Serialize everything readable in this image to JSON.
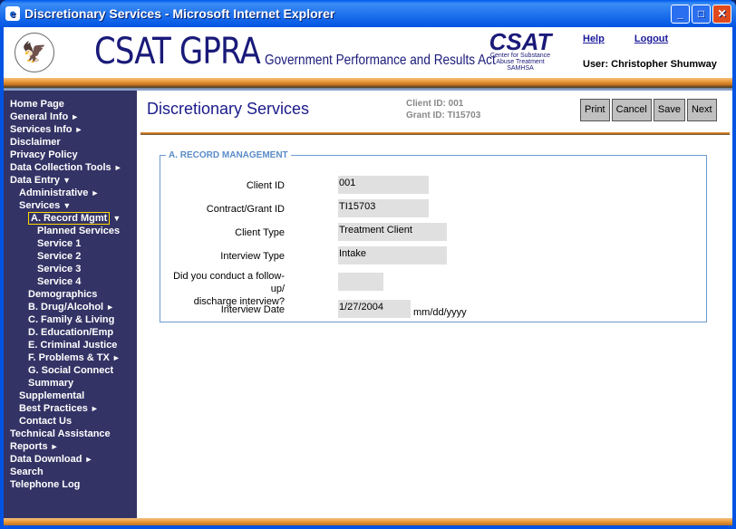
{
  "window": {
    "title": "Discretionary Services - Microsoft Internet Explorer"
  },
  "header": {
    "brand": "CSAT GPRA",
    "brand_sub": "Government Performance and Results Act",
    "logo_text": "CSAT",
    "logo_sub1": "Center for Substance",
    "logo_sub2": "Abuse Treatment",
    "logo_sub3": "SAMHSA",
    "help": "Help",
    "logout": "Logout",
    "user": "User: Christopher Shumway"
  },
  "sidebar": {
    "items": [
      {
        "label": "Home Page",
        "indent": 0,
        "arrow": ""
      },
      {
        "label": "General Info",
        "indent": 0,
        "arrow": "►"
      },
      {
        "label": "Services Info",
        "indent": 0,
        "arrow": "►"
      },
      {
        "label": "Disclaimer",
        "indent": 0,
        "arrow": ""
      },
      {
        "label": "Privacy Policy",
        "indent": 0,
        "arrow": ""
      },
      {
        "label": "Data Collection Tools",
        "indent": 0,
        "arrow": "►"
      },
      {
        "label": "Data Entry",
        "indent": 0,
        "arrow": "▼"
      },
      {
        "label": "Administrative",
        "indent": 1,
        "arrow": "►"
      },
      {
        "label": "Services",
        "indent": 1,
        "arrow": "▼"
      },
      {
        "label": "A. Record Mgmt",
        "indent": 2,
        "arrow": "▼",
        "selected": true
      },
      {
        "label": "Planned Services",
        "indent": 3,
        "arrow": ""
      },
      {
        "label": "Service 1",
        "indent": 3,
        "arrow": ""
      },
      {
        "label": "Service 2",
        "indent": 3,
        "arrow": ""
      },
      {
        "label": "Service 3",
        "indent": 3,
        "arrow": ""
      },
      {
        "label": "Service 4",
        "indent": 3,
        "arrow": ""
      },
      {
        "label": "Demographics",
        "indent": 2,
        "arrow": ""
      },
      {
        "label": "B. Drug/Alcohol",
        "indent": 2,
        "arrow": "►"
      },
      {
        "label": "C. Family & Living",
        "indent": 2,
        "arrow": ""
      },
      {
        "label": "D. Education/Emp",
        "indent": 2,
        "arrow": ""
      },
      {
        "label": "E. Criminal Justice",
        "indent": 2,
        "arrow": ""
      },
      {
        "label": "F. Problems & TX",
        "indent": 2,
        "arrow": "►"
      },
      {
        "label": "G. Social Connect",
        "indent": 2,
        "arrow": ""
      },
      {
        "label": "Summary",
        "indent": 2,
        "arrow": ""
      },
      {
        "label": "Supplemental",
        "indent": 1,
        "arrow": ""
      },
      {
        "label": "Best Practices",
        "indent": 1,
        "arrow": "►"
      },
      {
        "label": "Contact Us",
        "indent": 1,
        "arrow": ""
      },
      {
        "label": "Technical Assistance",
        "indent": 0,
        "arrow": ""
      },
      {
        "label": "Reports",
        "indent": 0,
        "arrow": "►"
      },
      {
        "label": "Data Download",
        "indent": 0,
        "arrow": "►"
      },
      {
        "label": "Search",
        "indent": 0,
        "arrow": ""
      },
      {
        "label": "Telephone Log",
        "indent": 0,
        "arrow": ""
      }
    ]
  },
  "main": {
    "title": "Discretionary Services",
    "client_id": "Client ID: 001",
    "grant_id": "Grant ID: TI15703",
    "buttons": {
      "print": "Print",
      "cancel": "Cancel",
      "save": "Save",
      "next": "Next"
    },
    "section": "A. RECORD MANAGEMENT",
    "fields": {
      "client_id": {
        "label": "Client ID",
        "value": "001"
      },
      "grant": {
        "label": "Contract/Grant ID",
        "value": "TI15703"
      },
      "client_type": {
        "label": "Client Type",
        "value": "Treatment Client"
      },
      "interview_type": {
        "label": "Interview Type",
        "value": "Intake"
      },
      "followup": {
        "label1": "Did you conduct a follow-up/",
        "label2": "discharge interview?",
        "value": ""
      },
      "date": {
        "label": "Interview Date",
        "value": "1/27/2004",
        "hint": "mm/dd/yyyy"
      }
    }
  }
}
